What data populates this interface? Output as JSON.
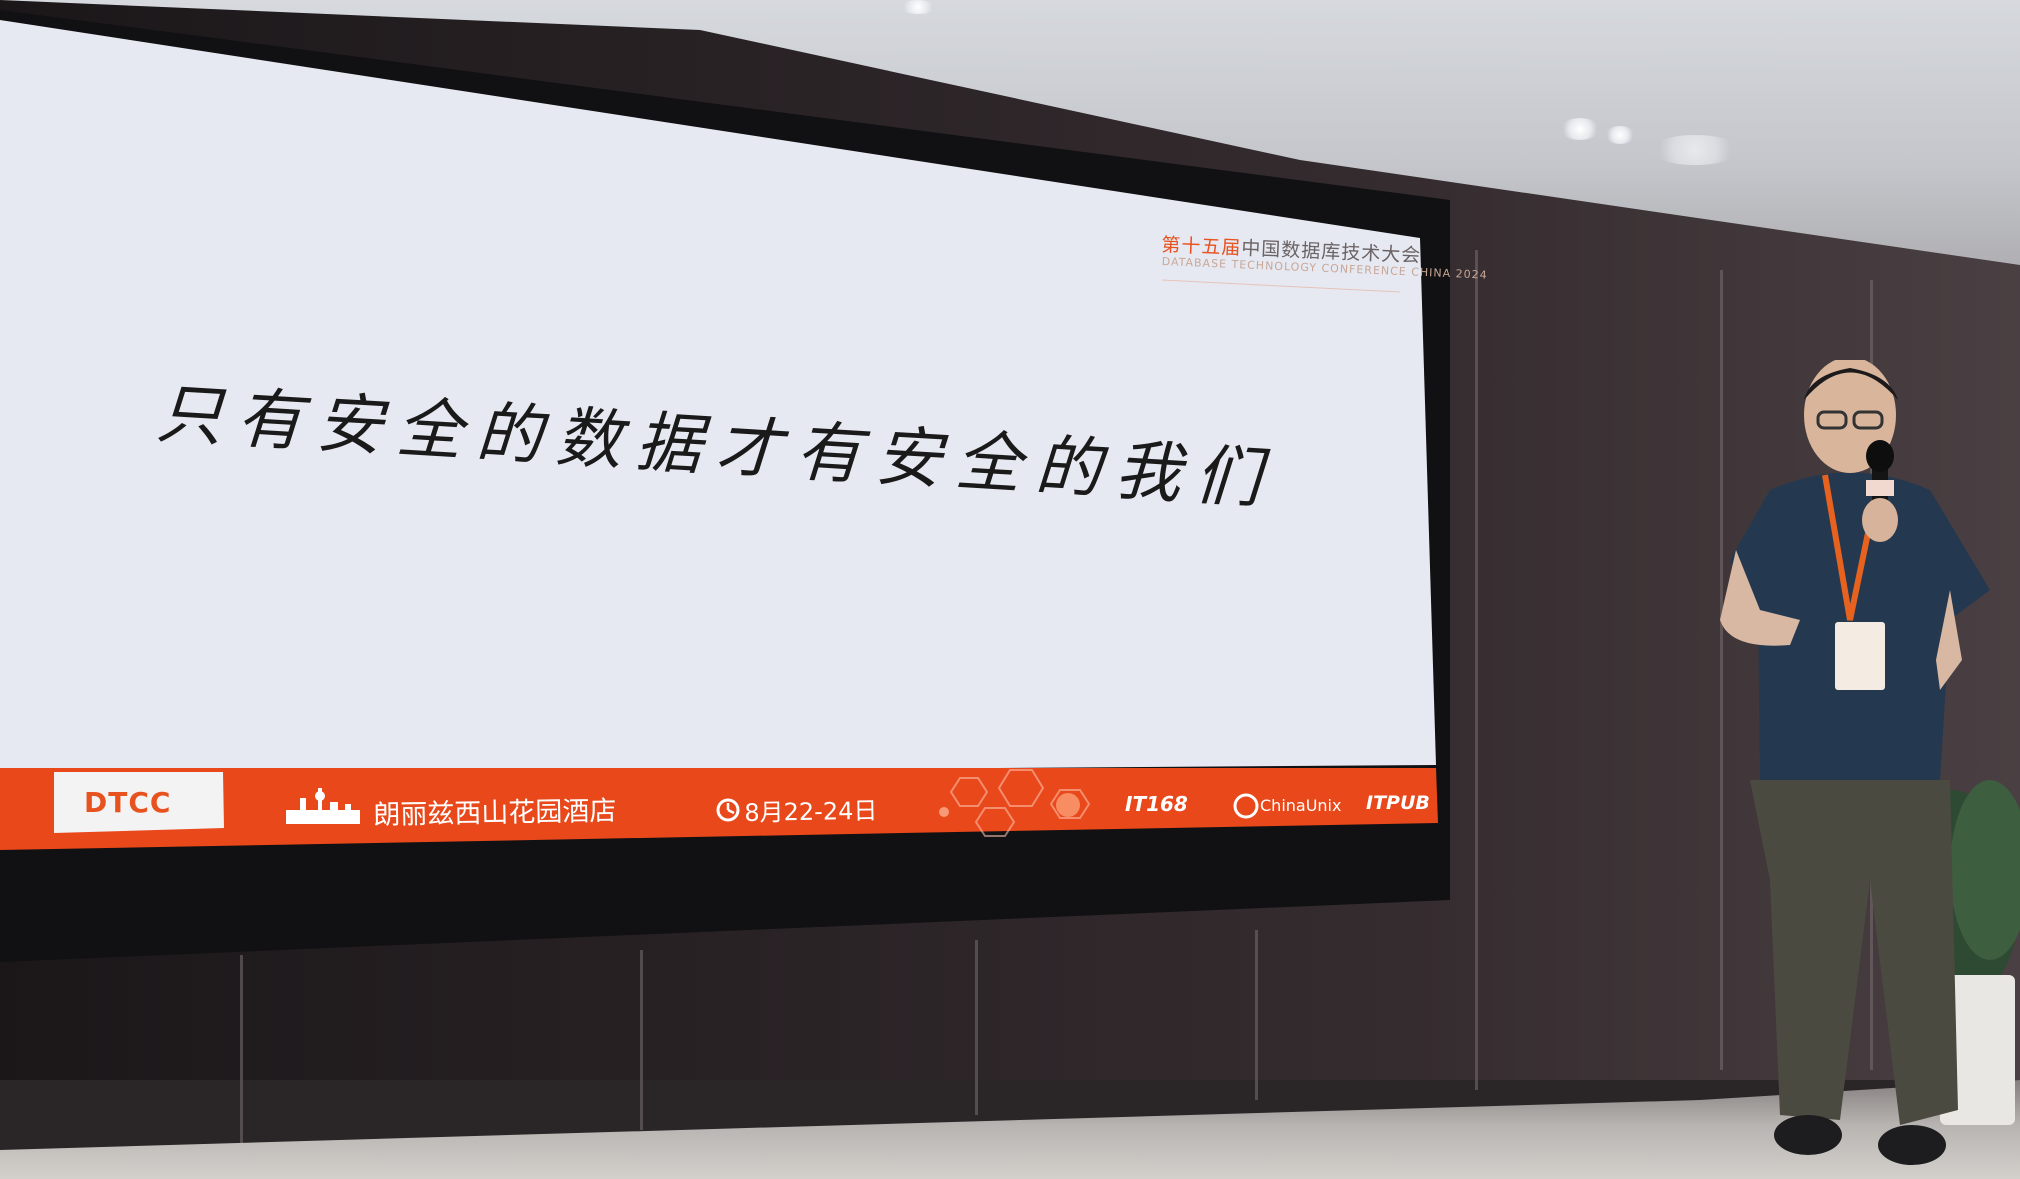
{
  "slide": {
    "conference_title_accent": "第十五届",
    "conference_title_rest": "中国数据库技术大会",
    "conference_subtitle": "DATABASE TECHNOLOGY CONFERENCE CHINA 2024",
    "headline": "只有安全的数据才有安全的我们",
    "footer": {
      "logo_text": "DTCC",
      "venue": "朗丽兹西山花园酒店",
      "dates": "8月22-24日",
      "sponsor_1": "IT168",
      "sponsor_2": "ChinaUnix",
      "sponsor_3": "ITPUB"
    },
    "colors": {
      "accent": "#e8521f",
      "screen": "#e5e8f0",
      "footer_bar": "#e8481a"
    }
  }
}
